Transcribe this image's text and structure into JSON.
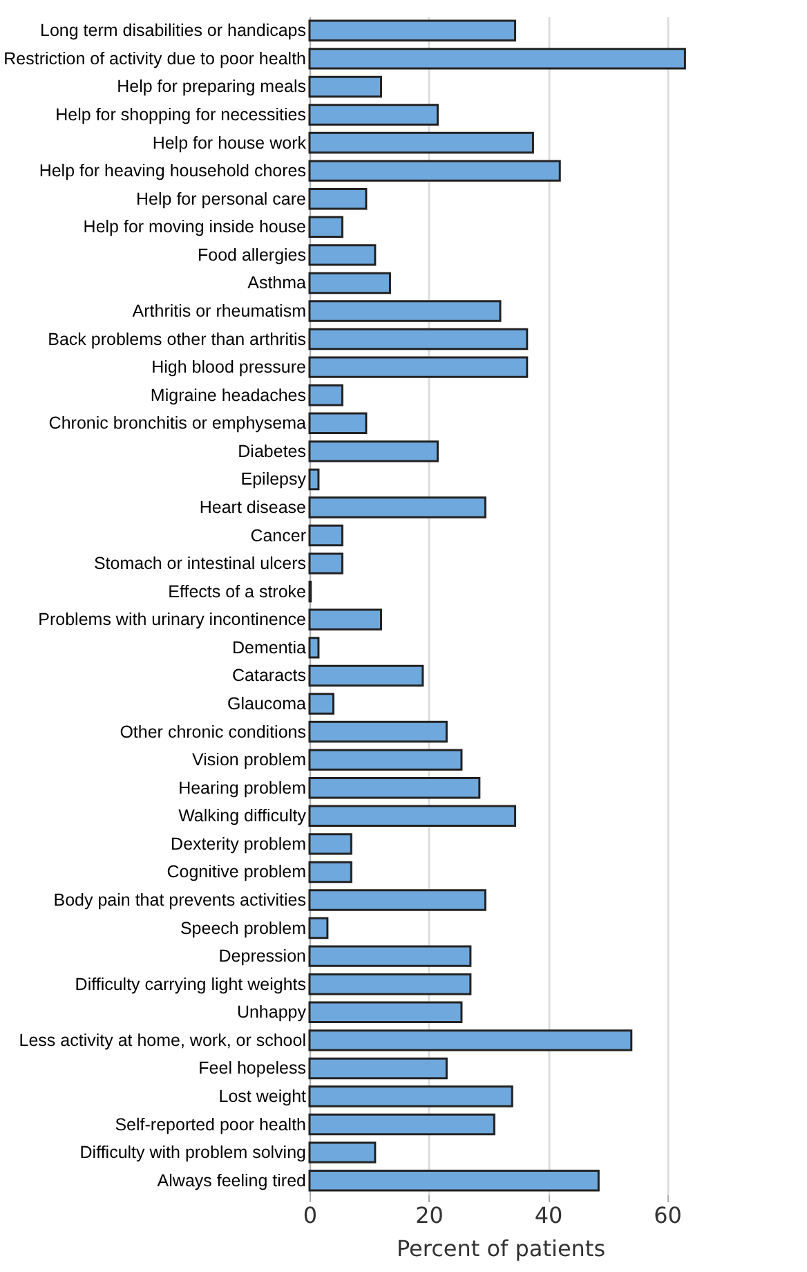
{
  "chart_data": {
    "type": "bar",
    "orientation": "horizontal",
    "xlabel": "Percent of patients",
    "categories": [
      "Long term disabilities or handicaps",
      "Restriction of activity due to poor health",
      "Help for preparing meals",
      "Help for shopping for necessities",
      "Help for house work",
      "Help for heaving household chores",
      "Help for personal care",
      "Help for moving inside house",
      "Food allergies",
      "Asthma",
      "Arthritis or rheumatism",
      "Back problems other than arthritis",
      "High blood pressure",
      "Migraine headaches",
      "Chronic bronchitis or emphysema",
      "Diabetes",
      "Epilepsy",
      "Heart disease",
      "Cancer",
      "Stomach or intestinal ulcers",
      "Effects of a stroke",
      "Problems with urinary incontinence",
      "Dementia",
      "Cataracts",
      "Glaucoma",
      "Other chronic conditions",
      "Vision problem",
      "Hearing problem",
      "Walking difficulty",
      "Dexterity problem",
      "Cognitive problem",
      "Body pain that prevents activities",
      "Speech problem",
      "Depression",
      "Difficulty carrying light weights",
      "Unhappy",
      "Less activity at home, work, or school",
      "Feel hopeless",
      "Lost weight",
      "Self-reported poor health",
      "Difficulty with problem solving",
      "Always feeling tired"
    ],
    "values": [
      34.5,
      63,
      12,
      21.5,
      37.5,
      42,
      9.5,
      5.5,
      11,
      13.5,
      32,
      36.5,
      36.5,
      5.5,
      9.5,
      21.5,
      1.5,
      29.5,
      5.5,
      5.5,
      0.2,
      12,
      1.5,
      19,
      4,
      23,
      25.5,
      28.5,
      34.5,
      7,
      7,
      29.5,
      3,
      27,
      27,
      25.5,
      54,
      23,
      34,
      31,
      11,
      48.5
    ],
    "color": "#6fa8dc",
    "xlim": [
      0,
      64
    ],
    "xticks": [
      0,
      20,
      40,
      60
    ],
    "grid": "x"
  }
}
